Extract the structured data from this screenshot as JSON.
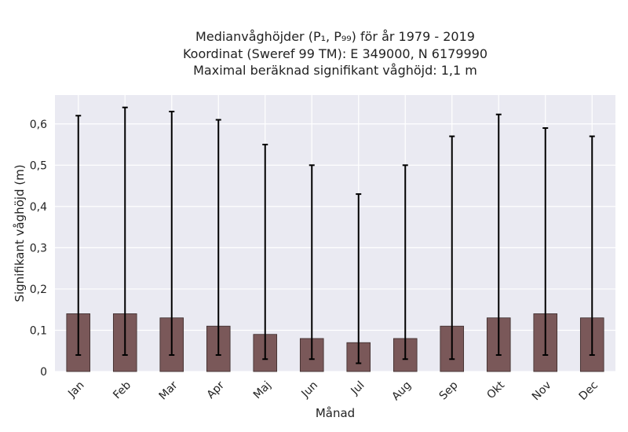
{
  "chart_data": {
    "type": "bar",
    "title_lines": [
      "Medianvåghöjder (P₁, P₉₉) för år 1979 - 2019",
      "Koordinat (Sweref 99 TM): E 349000, N 6179990",
      "Maximal beräknad signifikant våghöjd: 1,1 m"
    ],
    "xlabel": "Månad",
    "ylabel": "Signifikant våghöjd (m)",
    "categories": [
      "Jan",
      "Feb",
      "Mar",
      "Apr",
      "Maj",
      "Jun",
      "Jul",
      "Aug",
      "Sep",
      "Okt",
      "Nov",
      "Dec"
    ],
    "values": [
      0.14,
      0.14,
      0.13,
      0.11,
      0.09,
      0.08,
      0.07,
      0.08,
      0.11,
      0.13,
      0.14,
      0.13
    ],
    "error_low": [
      0.04,
      0.04,
      0.04,
      0.04,
      0.03,
      0.03,
      0.02,
      0.03,
      0.03,
      0.04,
      0.04,
      0.04
    ],
    "error_high": [
      0.62,
      0.64,
      0.63,
      0.61,
      0.55,
      0.5,
      0.43,
      0.5,
      0.57,
      0.623,
      0.59,
      0.57
    ],
    "ylim": [
      0,
      0.67
    ],
    "yticks": [
      0,
      0.1,
      0.2,
      0.3,
      0.4,
      0.5,
      0.6
    ],
    "ytick_labels": [
      "0",
      "0,1",
      "0,2",
      "0,3",
      "0,4",
      "0,5",
      "0,6"
    ],
    "grid": true,
    "colors": {
      "bar": "#7a5859",
      "bar_edge": "#3a2a2a",
      "background": "#eaeaf2",
      "grid": "#ffffff",
      "errorbar": "#000000"
    }
  }
}
